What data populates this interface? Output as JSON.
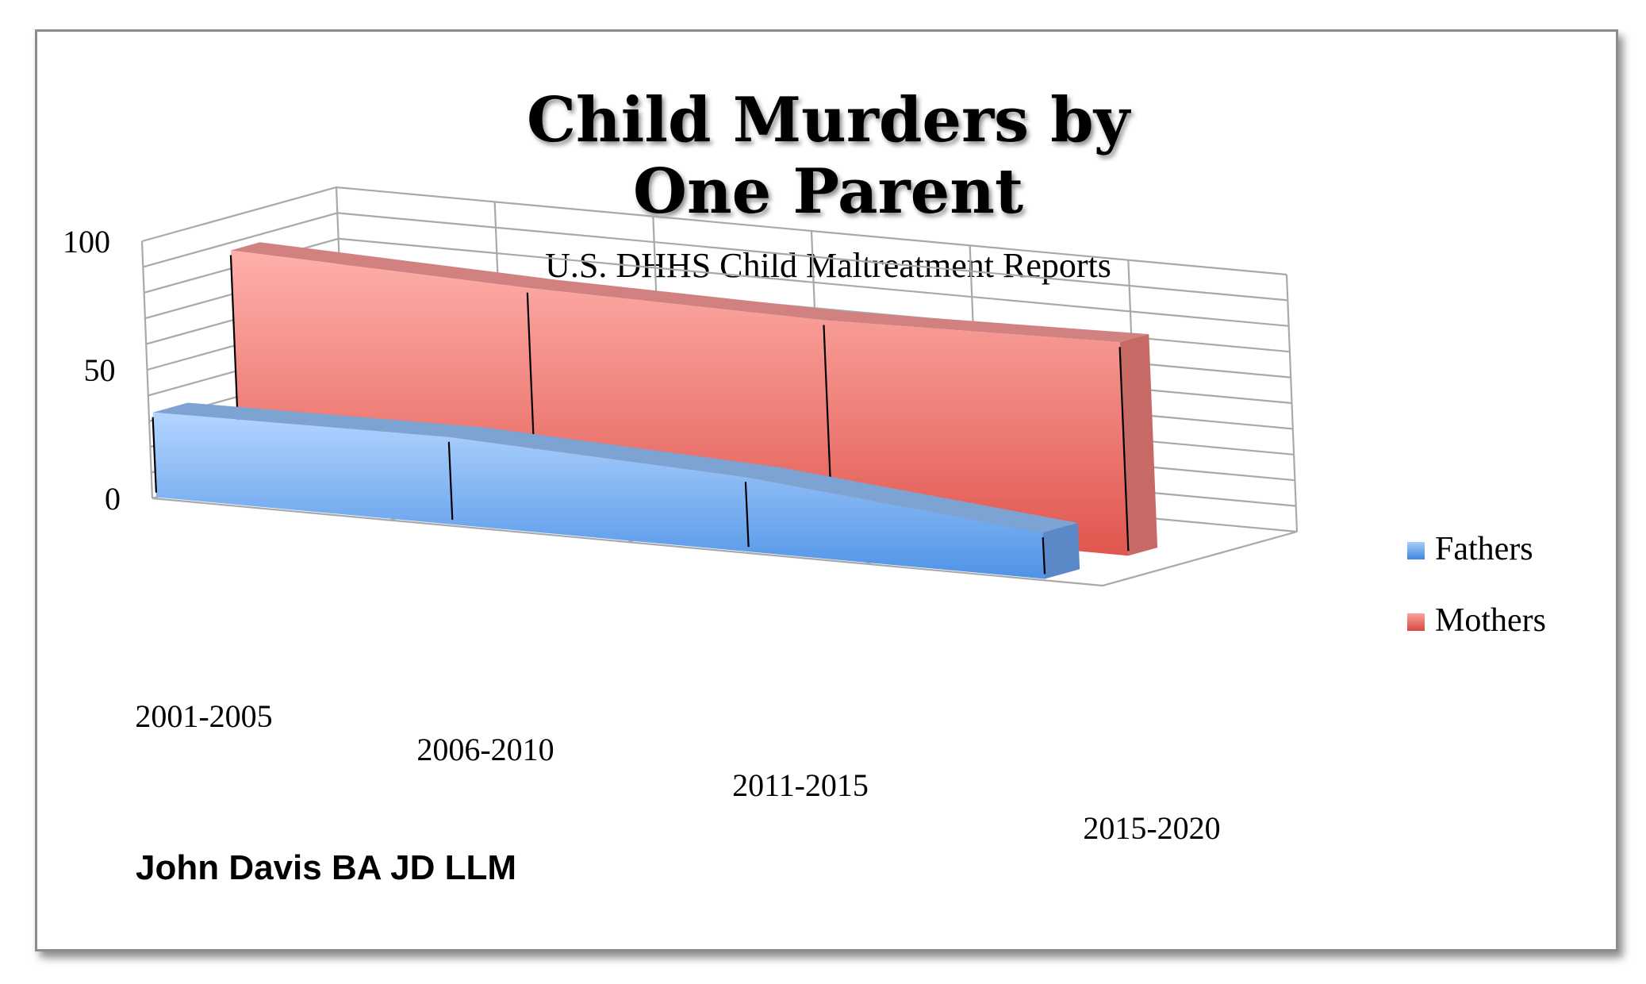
{
  "chart_data": {
    "type": "area",
    "title_lines": [
      "Child Murders by",
      "One Parent"
    ],
    "subtitle": "U.S. DHHS Child Maltreatment Reports",
    "categories": [
      "2001-2005",
      "2006-2010",
      "2011-2015",
      "2015-2020"
    ],
    "ylim": [
      0,
      100
    ],
    "yticks": [
      "0",
      "50",
      "100"
    ],
    "series": [
      {
        "name": "Fathers",
        "values": [
          33,
          34,
          29,
          18
        ],
        "color": "#6aa6ee"
      },
      {
        "name": "Mothers",
        "values": [
          87,
          83,
          81,
          83
        ],
        "color": "#ec6a62"
      }
    ],
    "legend_position": "right",
    "grid": true,
    "three_d": true
  },
  "credit": "John Davis BA JD LLM"
}
